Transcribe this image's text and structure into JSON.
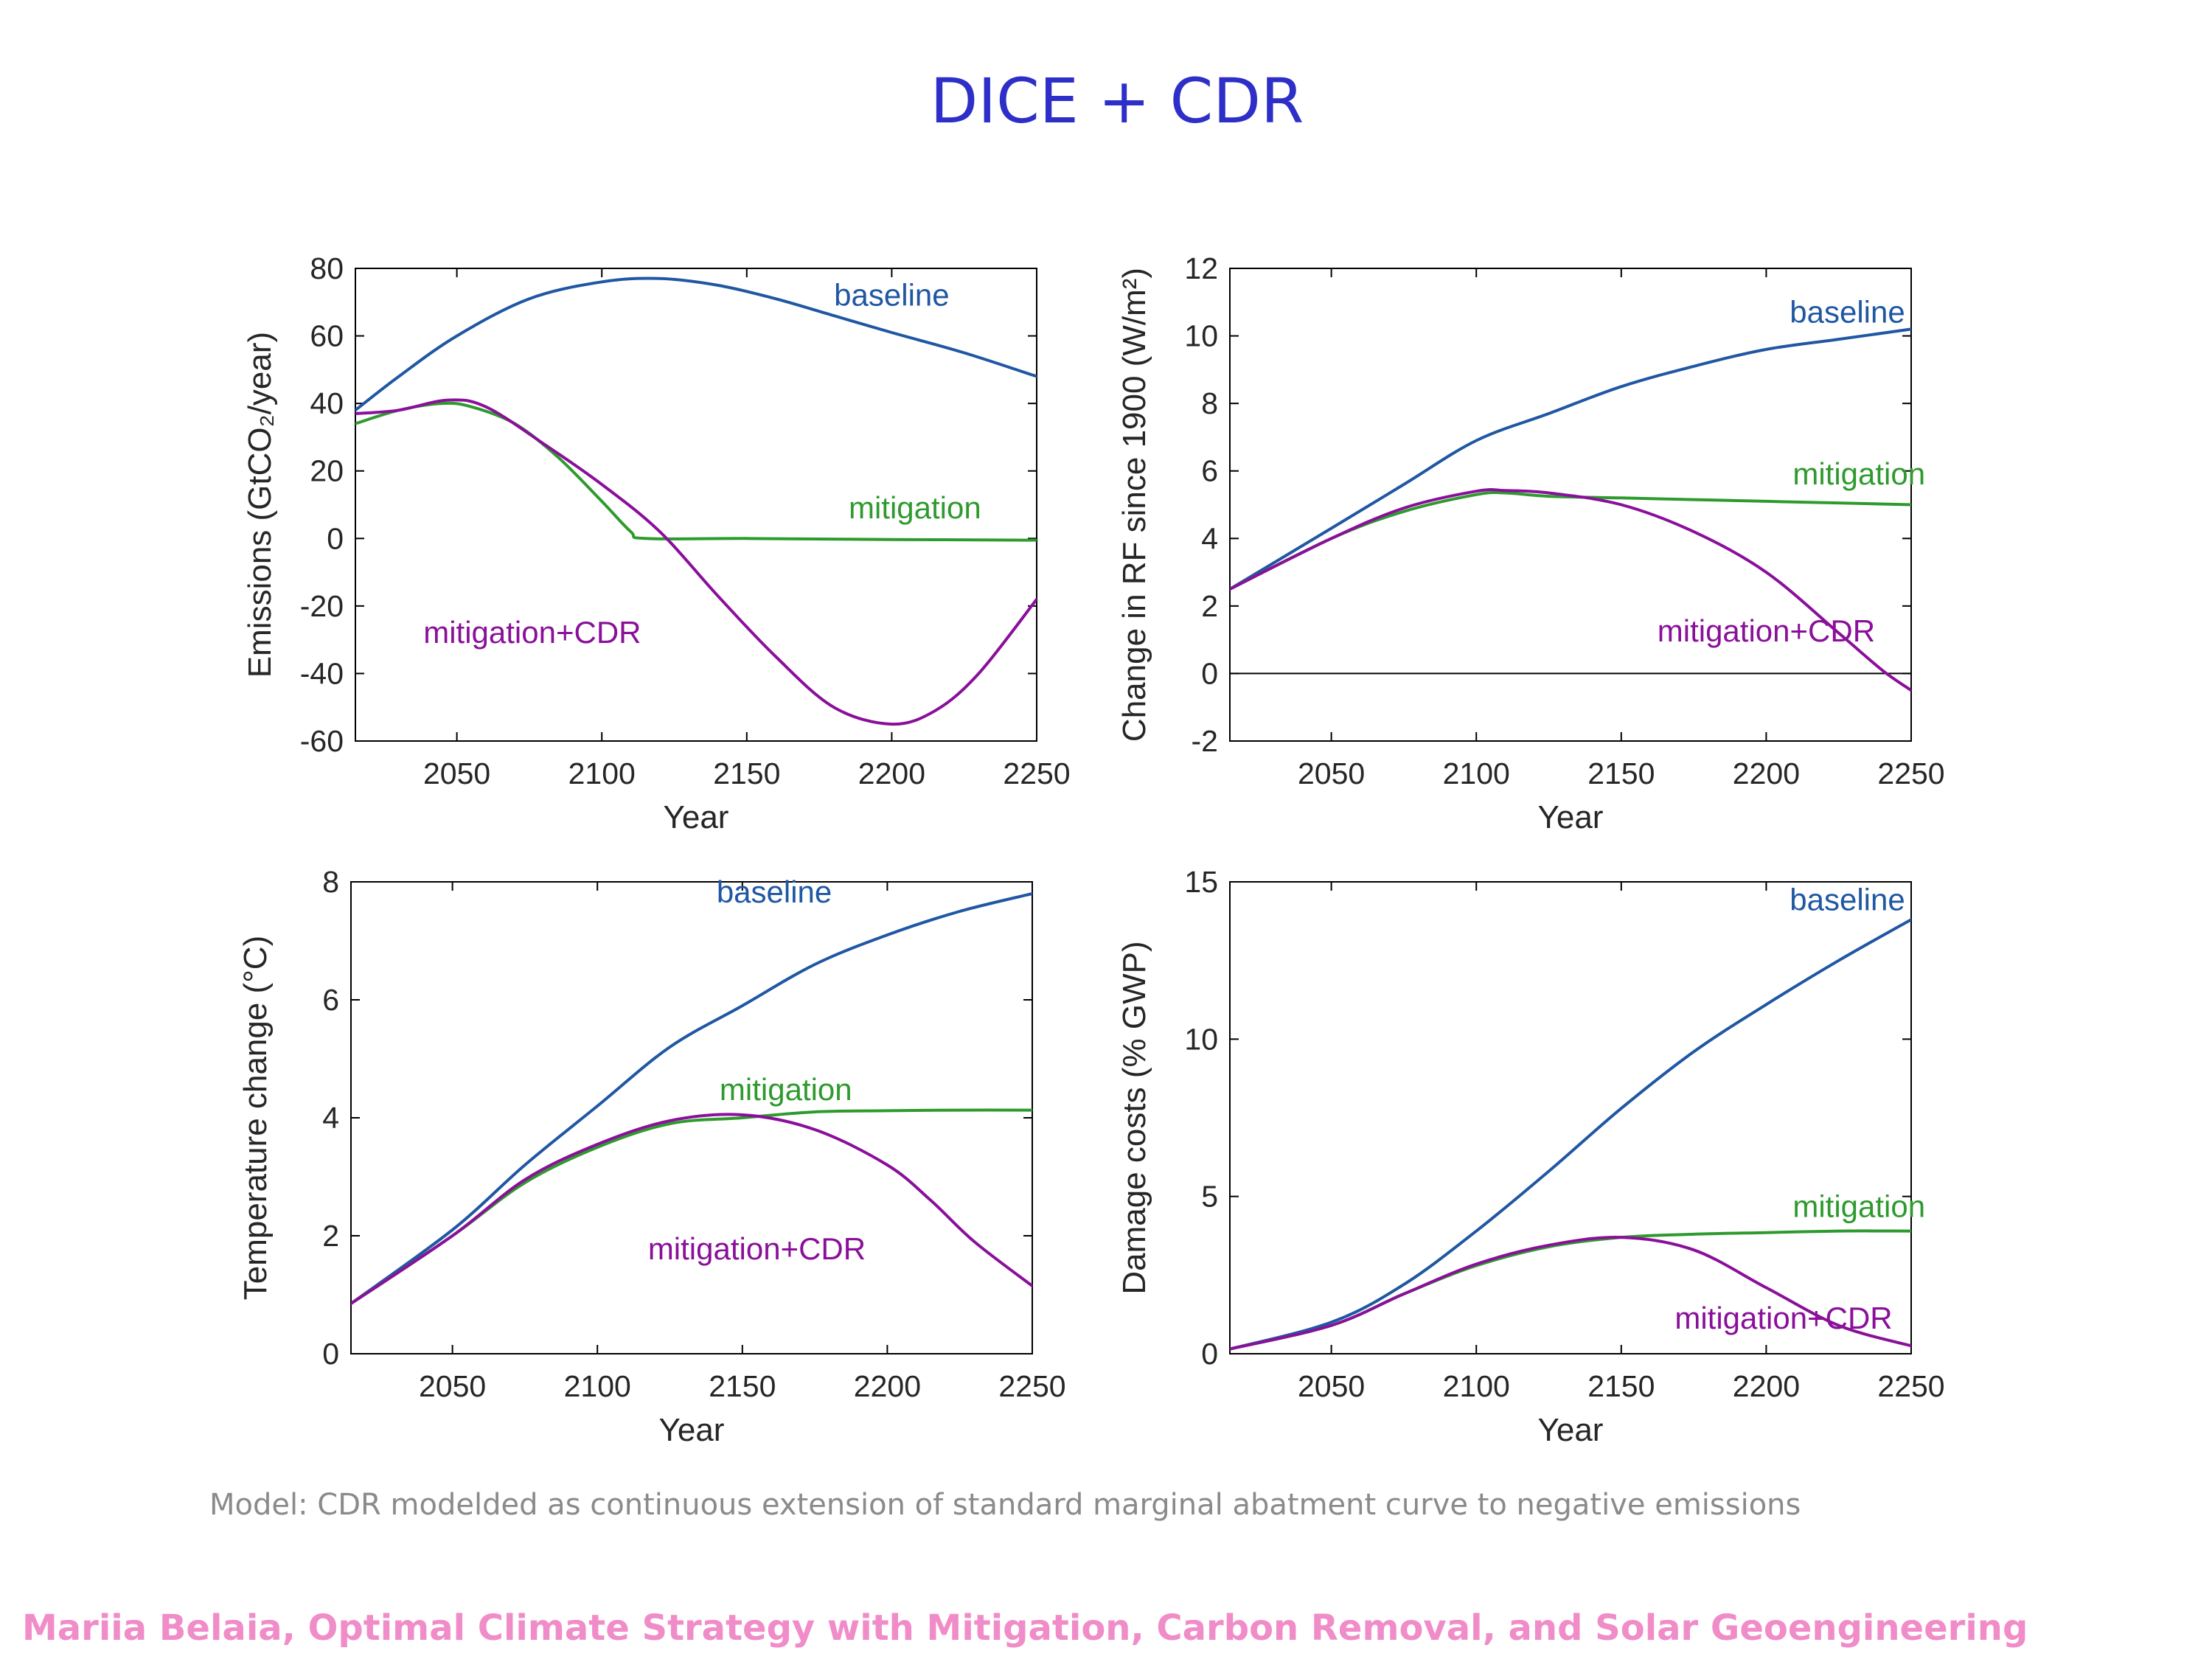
{
  "slide": {
    "title": "DICE + CDR",
    "caption": "Model: CDR modelded as continuous extension of standard marginal abatment curve to negative emissions",
    "footer": "Mariia Belaia, Optimal Climate Strategy with Mitigation, Carbon Removal, and Solar Geoengineering"
  },
  "colors": {
    "baseline": "#1f57a3",
    "mitigation": "#2e9a2e",
    "mitigation_cdr": "#8a0f9a",
    "axis": "#000000"
  },
  "chart_data": [
    {
      "type": "line",
      "xlabel": "Year",
      "ylabel": "Emissions (GtCO₂/year)",
      "xlim": [
        2015,
        2250
      ],
      "ylim": [
        -60,
        80
      ],
      "xticks": [
        2050,
        2100,
        2150,
        2200,
        2250
      ],
      "yticks": [
        -60,
        -40,
        -20,
        0,
        20,
        40,
        60,
        80
      ],
      "zero_line": false,
      "series": [
        {
          "name": "baseline",
          "x": [
            2015,
            2030,
            2050,
            2075,
            2100,
            2120,
            2140,
            2160,
            2180,
            2200,
            2225,
            2250
          ],
          "y": [
            38,
            48,
            60,
            71,
            76,
            77,
            75,
            71,
            66,
            61,
            55,
            48
          ]
        },
        {
          "name": "mitigation",
          "x": [
            2015,
            2030,
            2045,
            2055,
            2070,
            2085,
            2100,
            2110,
            2115,
            2150,
            2200,
            2250
          ],
          "y": [
            34,
            38,
            40,
            39,
            34,
            24,
            11,
            2,
            0,
            0,
            -0.3,
            -0.5
          ]
        },
        {
          "name": "mitigation+CDR",
          "x": [
            2015,
            2030,
            2047,
            2060,
            2080,
            2100,
            2120,
            2140,
            2160,
            2180,
            2200,
            2215,
            2230,
            2250
          ],
          "y": [
            37,
            38,
            41,
            39,
            28,
            16,
            2,
            -17,
            -35,
            -50,
            -55,
            -51,
            -40,
            -18
          ]
        }
      ],
      "annotations": [
        {
          "text": "baseline",
          "series": "baseline",
          "x": 2200,
          "y": 69
        },
        {
          "text": "mitigation",
          "series": "mitigation",
          "x": 2208,
          "y": 6
        },
        {
          "text": "mitigation+CDR",
          "series": "mitigation+CDR",
          "x": 2076,
          "y": -31
        }
      ]
    },
    {
      "type": "line",
      "xlabel": "Year",
      "ylabel": "Change in RF since 1900 (W/m²)",
      "xlim": [
        2015,
        2250
      ],
      "ylim": [
        -2,
        12
      ],
      "xticks": [
        2050,
        2100,
        2150,
        2200,
        2250
      ],
      "yticks": [
        -2,
        0,
        2,
        4,
        6,
        8,
        10,
        12
      ],
      "zero_line": true,
      "series": [
        {
          "name": "baseline",
          "x": [
            2015,
            2050,
            2075,
            2100,
            2125,
            2150,
            2175,
            2200,
            2225,
            2250
          ],
          "y": [
            2.5,
            4.3,
            5.6,
            6.9,
            7.7,
            8.5,
            9.1,
            9.6,
            9.9,
            10.2
          ]
        },
        {
          "name": "mitigation",
          "x": [
            2015,
            2050,
            2075,
            2100,
            2110,
            2125,
            2150,
            2175,
            2200,
            2250
          ],
          "y": [
            2.5,
            4.0,
            4.8,
            5.3,
            5.35,
            5.25,
            5.2,
            5.15,
            5.1,
            5.0
          ]
        },
        {
          "name": "mitigation+CDR",
          "x": [
            2015,
            2050,
            2075,
            2100,
            2110,
            2125,
            2150,
            2175,
            2200,
            2225,
            2240,
            2250
          ],
          "y": [
            2.5,
            4.0,
            4.9,
            5.4,
            5.42,
            5.35,
            5.0,
            4.2,
            3.0,
            1.2,
            0.1,
            -0.5
          ]
        }
      ],
      "annotations": [
        {
          "text": "baseline",
          "series": "baseline",
          "x": 2228,
          "y": 10.4
        },
        {
          "text": "mitigation",
          "series": "mitigation",
          "x": 2232,
          "y": 5.6
        },
        {
          "text": "mitigation+CDR",
          "series": "mitigation+CDR",
          "x": 2200,
          "y": 0.95
        }
      ]
    },
    {
      "type": "line",
      "xlabel": "Year",
      "ylabel": "Temperature change (°C)",
      "xlim": [
        2015,
        2250
      ],
      "ylim": [
        0,
        8
      ],
      "xticks": [
        2050,
        2100,
        2150,
        2200,
        2250
      ],
      "yticks": [
        0,
        2,
        4,
        6,
        8
      ],
      "zero_line": false,
      "series": [
        {
          "name": "baseline",
          "x": [
            2015,
            2050,
            2075,
            2100,
            2125,
            2150,
            2175,
            2200,
            2225,
            2250
          ],
          "y": [
            0.85,
            2.1,
            3.2,
            4.2,
            5.2,
            5.9,
            6.6,
            7.1,
            7.5,
            7.8
          ]
        },
        {
          "name": "mitigation",
          "x": [
            2015,
            2050,
            2075,
            2100,
            2125,
            2150,
            2175,
            2200,
            2225,
            2250
          ],
          "y": [
            0.85,
            2.0,
            2.9,
            3.5,
            3.9,
            4.0,
            4.1,
            4.12,
            4.13,
            4.13
          ]
        },
        {
          "name": "mitigation+CDR",
          "x": [
            2015,
            2050,
            2075,
            2100,
            2125,
            2150,
            2175,
            2200,
            2215,
            2230,
            2250
          ],
          "y": [
            0.85,
            2.0,
            2.95,
            3.55,
            3.95,
            4.05,
            3.8,
            3.2,
            2.6,
            1.9,
            1.15
          ]
        }
      ],
      "annotations": [
        {
          "text": "baseline",
          "series": "baseline",
          "x": 2161,
          "y": 7.65
        },
        {
          "text": "mitigation",
          "series": "mitigation",
          "x": 2165,
          "y": 4.3
        },
        {
          "text": "mitigation+CDR",
          "series": "mitigation+CDR",
          "x": 2155,
          "y": 1.6
        }
      ]
    },
    {
      "type": "line",
      "xlabel": "Year",
      "ylabel": "Damage costs (% GWP)",
      "xlim": [
        2015,
        2250
      ],
      "ylim": [
        0,
        15
      ],
      "xticks": [
        2050,
        2100,
        2150,
        2200,
        2250
      ],
      "yticks": [
        0,
        5,
        10,
        15
      ],
      "zero_line": false,
      "series": [
        {
          "name": "baseline",
          "x": [
            2015,
            2050,
            2075,
            2100,
            2125,
            2150,
            2175,
            2200,
            2225,
            2250
          ],
          "y": [
            0.15,
            1.0,
            2.2,
            3.9,
            5.8,
            7.8,
            9.6,
            11.1,
            12.5,
            13.8
          ]
        },
        {
          "name": "mitigation",
          "x": [
            2015,
            2050,
            2075,
            2100,
            2125,
            2150,
            2175,
            2200,
            2225,
            2250
          ],
          "y": [
            0.15,
            0.9,
            1.9,
            2.8,
            3.4,
            3.7,
            3.8,
            3.85,
            3.9,
            3.9
          ]
        },
        {
          "name": "mitigation+CDR",
          "x": [
            2015,
            2050,
            2075,
            2100,
            2125,
            2150,
            2175,
            2200,
            2225,
            2250
          ],
          "y": [
            0.15,
            0.9,
            1.9,
            2.85,
            3.45,
            3.7,
            3.3,
            2.1,
            0.9,
            0.25
          ]
        }
      ],
      "annotations": [
        {
          "text": "baseline",
          "series": "baseline",
          "x": 2228,
          "y": 14.1
        },
        {
          "text": "mitigation",
          "series": "mitigation",
          "x": 2232,
          "y": 4.35
        },
        {
          "text": "mitigation+CDR",
          "series": "mitigation+CDR",
          "x": 2206,
          "y": 0.8
        }
      ]
    }
  ]
}
